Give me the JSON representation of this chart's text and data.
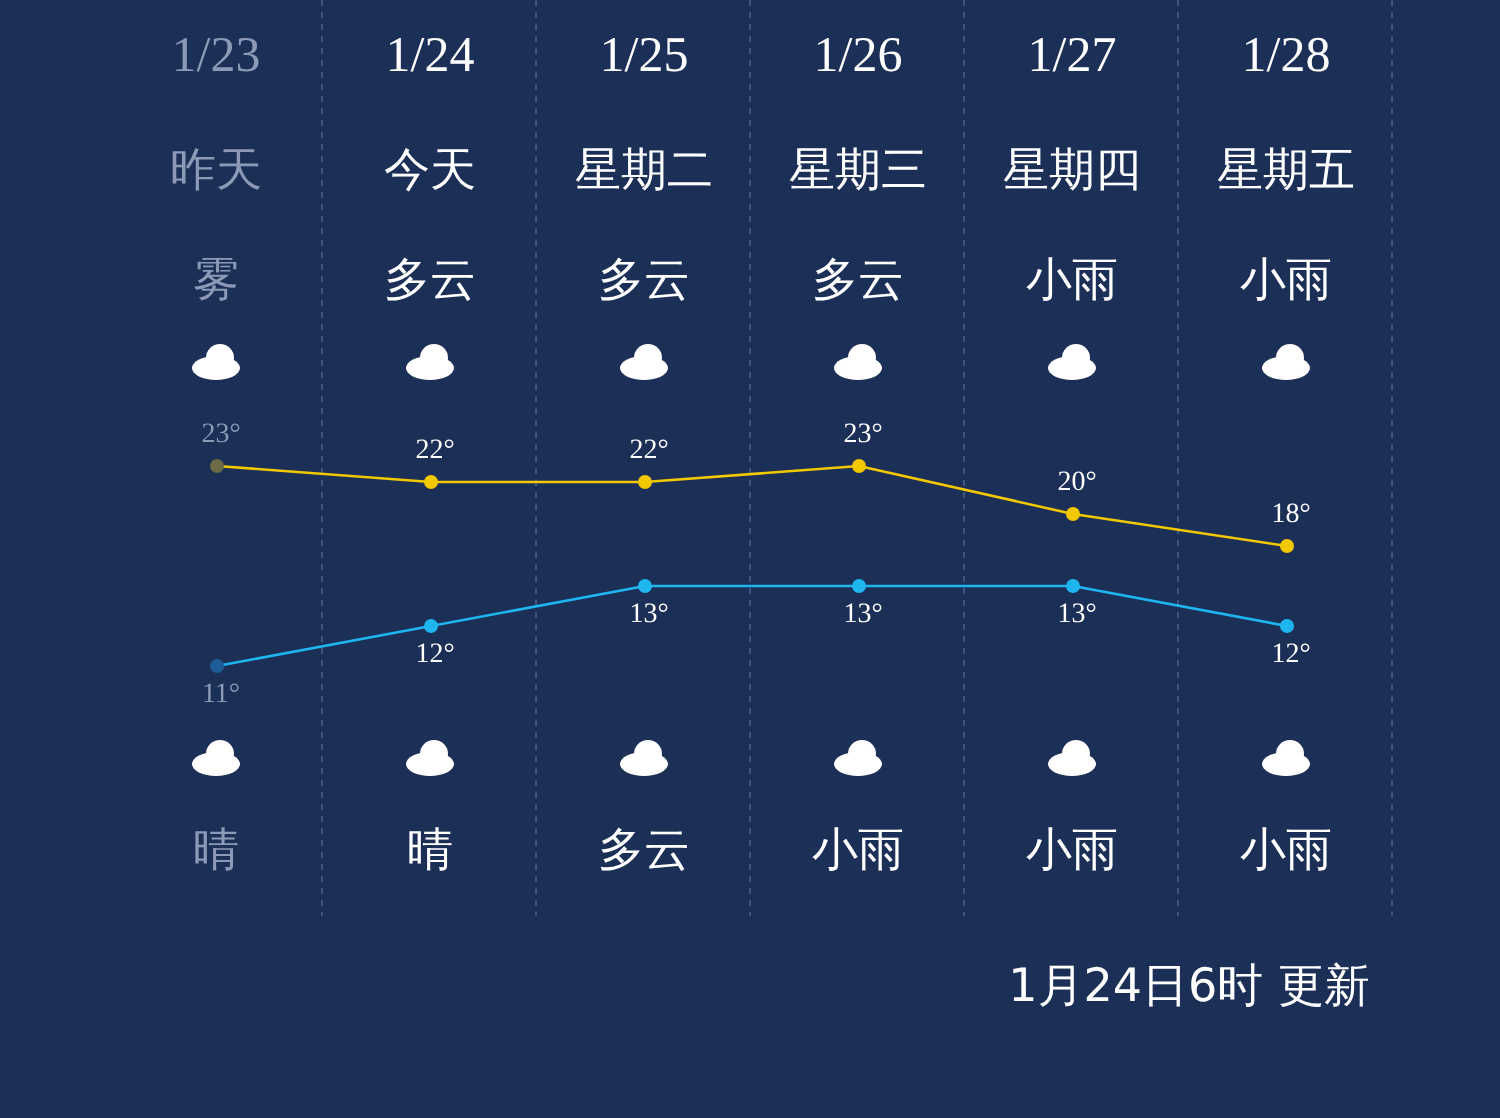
{
  "chart_data": [
    {
      "type": "line",
      "categories": [
        "1/23",
        "1/24",
        "1/25",
        "1/26",
        "1/27",
        "1/28"
      ],
      "series": [
        {
          "color": "#f2c800",
          "colors": [
            "#6b6b45",
            "#f2c800",
            "#f2c800",
            "#f2c800",
            "#f2c800",
            "#f2c800"
          ],
          "values": [
            23,
            22,
            22,
            23,
            20,
            18
          ],
          "value_labels": [
            "23°",
            "22°",
            "22°",
            "23°",
            "20°",
            "18°"
          ]
        }
      ],
      "marker": "circle",
      "annotations": [
        "昨天",
        "今天",
        "星期二",
        "星期三",
        "星期四",
        "星期五",
        "雾",
        "多云",
        "多云",
        "多云",
        "小雨",
        "小雨",
        "晴",
        "晴",
        "多云",
        "小雨",
        "小雨",
        "小雨",
        "1月24日6时 更新"
      ]
    },
    {
      "type": "line",
      "categories": [
        null,
        null,
        null,
        null,
        null,
        null
      ],
      "series": [
        {
          "color": "#1fb6f0",
          "colors": [
            "#1d5d96",
            "#1fb6f0",
            "#1fb6f0",
            "#1fb6f0",
            "#1fb6f0",
            "#1fb6f0"
          ],
          "values": [
            11,
            12,
            13,
            13,
            13,
            12
          ],
          "value_labels": [
            "11°",
            "12°",
            "13°",
            "13°",
            "13°",
            "12°"
          ]
        }
      ],
      "marker": "circle"
    }
  ]
}
